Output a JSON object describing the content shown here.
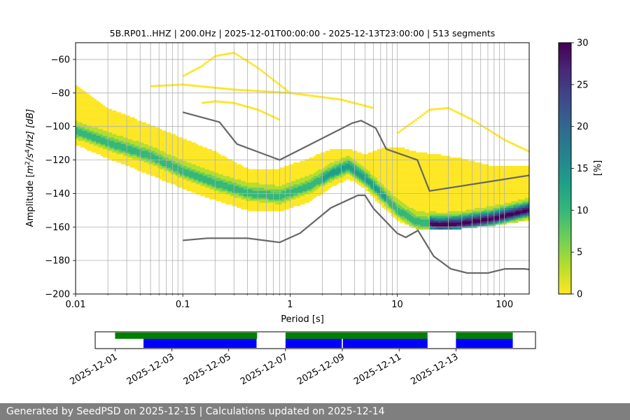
{
  "chart_data": {
    "type": "heatmap",
    "title": "5B.RP01..HHZ | 200.0Hz | 2025-12-01T00:00:00 - 2025-12-13T23:00:00 | 513 segments",
    "xlabel": "Period [s]",
    "ylabel_parts": {
      "prefix": "Amplitude [",
      "m": "m",
      "sup1": "2",
      "mid": "/s",
      "sup2": "4",
      "suffix": "/Hz] [dB]"
    },
    "x_scale": "log",
    "xlim": [
      0.01,
      170
    ],
    "ylim": [
      -200,
      -50
    ],
    "x_ticks": [
      {
        "v": 0.01,
        "label": "0.01"
      },
      {
        "v": 0.1,
        "label": "0.1"
      },
      {
        "v": 1,
        "label": "1"
      },
      {
        "v": 10,
        "label": "10"
      },
      {
        "v": 100,
        "label": "100"
      }
    ],
    "y_ticks": [
      {
        "v": -60,
        "label": "−60"
      },
      {
        "v": -80,
        "label": "−80"
      },
      {
        "v": -100,
        "label": "−100"
      },
      {
        "v": -120,
        "label": "−120"
      },
      {
        "v": -140,
        "label": "−140"
      },
      {
        "v": -160,
        "label": "−160"
      },
      {
        "v": -180,
        "label": "−180"
      },
      {
        "v": -200,
        "label": "−200"
      }
    ],
    "grid": true,
    "colorbar": {
      "label": "[%]",
      "range": [
        0,
        30
      ],
      "ticks": [
        {
          "v": 0,
          "label": "0"
        },
        {
          "v": 5,
          "label": "5"
        },
        {
          "v": 10,
          "label": "10"
        },
        {
          "v": 15,
          "label": "15"
        },
        {
          "v": 20,
          "label": "20"
        },
        {
          "v": 25,
          "label": "25"
        },
        {
          "v": 30,
          "label": "30"
        }
      ],
      "colormap": [
        "#fde725",
        "#b5de2b",
        "#6ece58",
        "#35b779",
        "#1f9e89",
        "#26828e",
        "#31688e",
        "#3e4989",
        "#482878",
        "#440154"
      ]
    },
    "mode": {
      "x": [
        0.01,
        0.02,
        0.05,
        0.1,
        0.2,
        0.4,
        0.8,
        1.5,
        2.5,
        3.5,
        5,
        7,
        10,
        15,
        25,
        40,
        80,
        170
      ],
      "y": [
        -103,
        -110,
        -118,
        -127,
        -134,
        -140,
        -142,
        -136,
        -128,
        -124,
        -131,
        -140,
        -150,
        -157,
        -159,
        -158,
        -155,
        -150
      ]
    },
    "spread": {
      "lower": [
        -110,
        -118,
        -128,
        -136,
        -143,
        -149,
        -150,
        -144,
        -135,
        -130,
        -136,
        -146,
        -155,
        -160,
        -161,
        -160,
        -158,
        -155
      ],
      "upper": [
        -76,
        -90,
        -100,
        -108,
        -116,
        -126,
        -126,
        -120,
        -114,
        -114,
        -118,
        -114,
        -113,
        -116,
        -118,
        -120,
        -125,
        -124
      ]
    },
    "high_lines": [
      {
        "x": [
          0.1,
          0.15,
          0.2,
          0.3,
          0.5,
          1.0
        ],
        "y": [
          -70,
          -64,
          -58,
          -56,
          -65,
          -80
        ]
      },
      {
        "x": [
          0.05,
          0.1,
          0.3,
          1.0,
          3,
          6
        ],
        "y": [
          -76,
          -75,
          -78,
          -80,
          -84,
          -89
        ]
      },
      {
        "x": [
          0.15,
          0.2,
          0.3,
          0.5,
          0.8
        ],
        "y": [
          -86,
          -85,
          -86,
          -90,
          -96
        ]
      },
      {
        "x": [
          10,
          15,
          20,
          30,
          50,
          100,
          170
        ],
        "y": [
          -104,
          -96,
          -90,
          -89,
          -96,
          -108,
          -115
        ]
      }
    ],
    "nhnm": {
      "x": [
        0.1,
        0.22,
        0.32,
        0.8,
        3.8,
        4.6,
        6.3,
        7.9,
        15.4,
        20,
        354
      ],
      "y": [
        -91.5,
        -97.4,
        -110.5,
        -120,
        -98,
        -96.5,
        -101,
        -113.5,
        -120,
        -138.5,
        -126
      ]
    },
    "nlnm": {
      "x": [
        0.1,
        0.17,
        0.4,
        0.8,
        1.24,
        2.4,
        4.3,
        5,
        6,
        10,
        12,
        15.6,
        21.9,
        31.6,
        45,
        70,
        101,
        154,
        328
      ],
      "y": [
        -168,
        -166.7,
        -166.7,
        -169.2,
        -163.7,
        -148.6,
        -141.1,
        -141.1,
        -149,
        -163.8,
        -166.2,
        -162.1,
        -177.5,
        -185,
        -187.5,
        -187.5,
        -185,
        -185,
        -187.5
      ]
    },
    "availability": {
      "x_ticks": [
        {
          "v": 1,
          "label": "2025-12-01"
        },
        {
          "v": 3,
          "label": "2025-12-03"
        },
        {
          "v": 5,
          "label": "2025-12-05"
        },
        {
          "v": 7,
          "label": "2025-12-07"
        },
        {
          "v": 9,
          "label": "2025-12-09"
        },
        {
          "v": 11,
          "label": "2025-12-11"
        },
        {
          "v": 13,
          "label": "2025-12-13"
        }
      ],
      "xlim": [
        0.3,
        15.8
      ],
      "green_segments": [
        [
          1.0,
          6.0
        ],
        [
          7.0,
          12.0
        ],
        [
          13.0,
          15.0
        ]
      ],
      "blue_segments": [
        [
          2.0,
          5.98
        ],
        [
          7.0,
          8.98
        ],
        [
          9.02,
          12.0
        ],
        [
          13.0,
          15.0
        ]
      ],
      "green_color": "#008000",
      "blue_color": "#0000ff"
    }
  },
  "footer": {
    "text": "Generated by SeedPSD on 2025-12-15 | Calculations updated on 2025-12-14"
  }
}
